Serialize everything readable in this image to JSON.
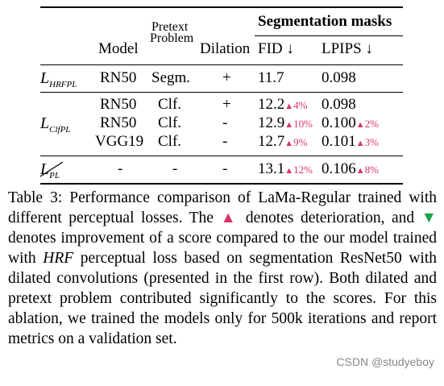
{
  "table": {
    "headers": {
      "model": "Model",
      "pretext": "Pretext\nProblem",
      "pretext_l1": "Pretext",
      "pretext_l2": "Problem",
      "dilation": "Dilation",
      "group": "Segmentation masks",
      "fid": "FID ↓",
      "lpips": "LPIPS ↓"
    },
    "rows": [
      {
        "loss": "L_HRFPL",
        "loss_main": "L",
        "loss_sub": "HRFPL",
        "model": "RN50",
        "pretext": "Segm.",
        "dilation": "+",
        "fid": "11.7",
        "fid_delta": "",
        "lpips": "0.098",
        "lpips_delta": ""
      },
      {
        "loss": "",
        "model": "RN50",
        "pretext": "Clf.",
        "dilation": "+",
        "fid": "12.2",
        "fid_delta": "4%",
        "lpips": "0.098",
        "lpips_delta": ""
      },
      {
        "loss": "L_ClfPL",
        "loss_main": "L",
        "loss_sub": "ClfPL",
        "model": "RN50",
        "pretext": "Clf.",
        "dilation": "-",
        "fid": "12.9",
        "fid_delta": "10%",
        "lpips": "0.100",
        "lpips_delta": "2%"
      },
      {
        "loss": "",
        "model": "VGG19",
        "pretext": "Clf.",
        "dilation": "-",
        "fid": "12.7",
        "fid_delta": "9%",
        "lpips": "0.101",
        "lpips_delta": "3%"
      },
      {
        "loss": "L_PL (struck)",
        "loss_main": "L",
        "loss_sub": "PL",
        "model": "-",
        "pretext": "-",
        "dilation": "-",
        "fid": "13.1",
        "fid_delta": "12%",
        "lpips": "0.106",
        "lpips_delta": "8%"
      }
    ]
  },
  "caption": {
    "p1": "Table 3: Performance comparison of LaMa-Regular trained with different perceptual losses. The ",
    "up_symbol": "▲",
    "p2": " denotes deterioration, and ",
    "down_symbol": "▼",
    "p3": " denotes improvement of a score compared to the our model trained with ",
    "hrf": "HRF",
    "p4": " perceptual loss based on segmentation ResNet50 with dilated convolutions (presented in the first row). Both dilated and pretext problem contributed significantly to the scores. For this ablation, we trained the models only for 500k iterations and report metrics on a validation set."
  },
  "watermark": "CSDN @studyeboy",
  "colors": {
    "up": "#d6336c",
    "down": "#1aa34a"
  }
}
